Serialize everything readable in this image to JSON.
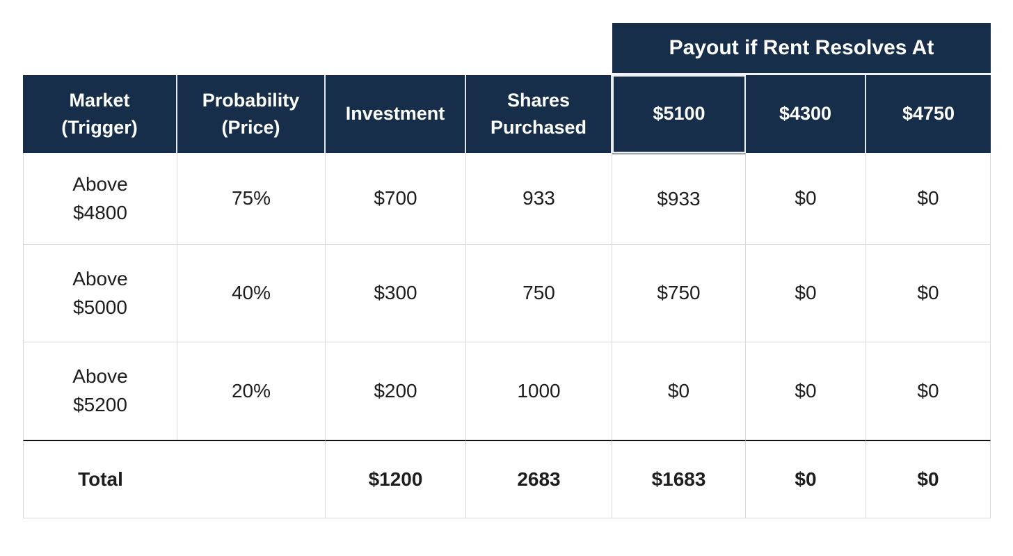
{
  "banner": {
    "label": "Payout if Rent Resolves At"
  },
  "table": {
    "headers": [
      {
        "key": "market",
        "label": "Market\n(Trigger)"
      },
      {
        "key": "probability",
        "label": "Probability\n(Price)"
      },
      {
        "key": "investment",
        "label": "Investment"
      },
      {
        "key": "shares",
        "label": "Shares\nPurchased"
      },
      {
        "key": "payout_5100",
        "label": "$5100",
        "highlighted": true
      },
      {
        "key": "payout_4300",
        "label": "$4300"
      },
      {
        "key": "payout_4750",
        "label": "$4750"
      }
    ],
    "rows": [
      {
        "market": "Above\n$4800",
        "probability": "75%",
        "investment": "$700",
        "shares": "933",
        "payout_5100": "$933",
        "payout_4300": "$0",
        "payout_4750": "$0"
      },
      {
        "market": "Above\n$5000",
        "probability": "40%",
        "investment": "$300",
        "shares": "750",
        "payout_5100": "$750",
        "payout_4300": "$0",
        "payout_4750": "$0"
      },
      {
        "market": "Above\n$5200",
        "probability": "20%",
        "investment": "$200",
        "shares": "1000",
        "payout_5100": "$0",
        "payout_4300": "$0",
        "payout_4750": "$0"
      }
    ],
    "total": {
      "label": "Total",
      "investment": "$1200",
      "shares": "2683",
      "payout_5100": "$1683",
      "payout_4300": "$0",
      "payout_4750": "$0"
    }
  },
  "colors": {
    "header_bg": "#162E4A",
    "header_text": "#FFFFFF",
    "body_text": "#1D1D1D",
    "grid_line": "#D9D9D9",
    "header_divider": "#E4E8EC",
    "highlight_outline": "#EEF1F4",
    "highlight_underline": "#A2A7AD",
    "total_rule": "#111111",
    "page_background": "#FFFFFF"
  }
}
